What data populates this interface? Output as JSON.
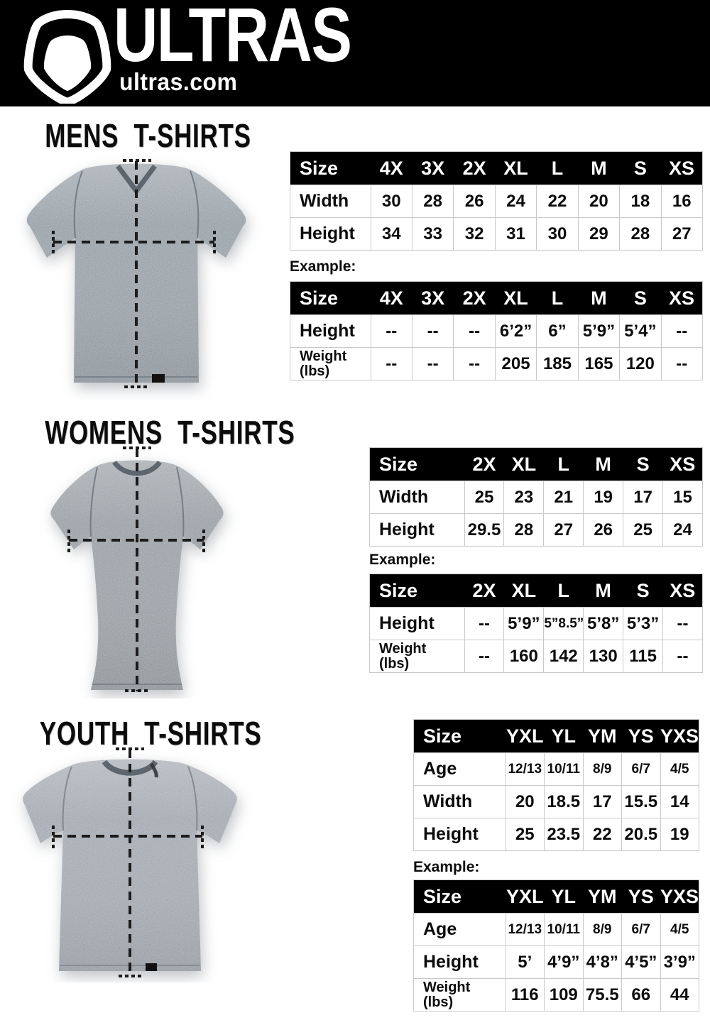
{
  "header": {
    "brand": "ULTRAS",
    "domain": "ultras.com",
    "logo_icon": "ultras-crest-icon",
    "bg_color": "#000000",
    "text_color": "#ffffff"
  },
  "colors": {
    "table_header_bg": "#000000",
    "table_border": "#c9c9c9",
    "dash_line": "#1c1c1c",
    "shirt_gray_mens": "#7b8790",
    "shirt_gray_womens": "#7d858c",
    "shirt_gray_youth": "#8a929c"
  },
  "sections": [
    {
      "title": "MENS T-SHIRTS",
      "shirt_image": "mens-gray-vneck-tshirt-photo",
      "example_label": "Example:",
      "size_table": {
        "header": [
          "Size",
          "4X",
          "3X",
          "2X",
          "XL",
          "L",
          "M",
          "S",
          "XS"
        ],
        "rows": [
          {
            "label": "Width",
            "values": [
              "30",
              "28",
              "26",
              "24",
              "22",
              "20",
              "18",
              "16"
            ]
          },
          {
            "label": "Height",
            "values": [
              "34",
              "33",
              "32",
              "31",
              "30",
              "29",
              "28",
              "27"
            ]
          }
        ]
      },
      "example_table": {
        "header": [
          "Size",
          "4X",
          "3X",
          "2X",
          "XL",
          "L",
          "M",
          "S",
          "XS"
        ],
        "rows": [
          {
            "label": "Height",
            "values": [
              "--",
              "--",
              "--",
              "6’2”",
              "6”",
              "5’9”",
              "5’4”",
              "--"
            ]
          },
          {
            "label": "Weight\n(lbs)",
            "values": [
              "--",
              "--",
              "--",
              "205",
              "185",
              "165",
              "120",
              "--"
            ]
          }
        ]
      }
    },
    {
      "title": "WOMENS T-SHIRTS",
      "shirt_image": "womens-gray-fitted-tshirt-photo",
      "example_label": "Example:",
      "size_table": {
        "header": [
          "Size",
          "2X",
          "XL",
          "L",
          "M",
          "S",
          "XS"
        ],
        "rows": [
          {
            "label": "Width",
            "values": [
              "25",
              "23",
              "21",
              "19",
              "17",
              "15"
            ]
          },
          {
            "label": "Height",
            "values": [
              "29.5",
              "28",
              "27",
              "26",
              "25",
              "24"
            ]
          }
        ]
      },
      "example_table": {
        "header": [
          "Size",
          "2X",
          "XL",
          "L",
          "M",
          "S",
          "XS"
        ],
        "rows": [
          {
            "label": "Height",
            "values": [
              "--",
              "5’9”",
              "5”8.5”",
              "5’8”",
              "5’3”",
              "--"
            ]
          },
          {
            "label": "Weight\n(lbs)",
            "values": [
              "--",
              "160",
              "142",
              "130",
              "115",
              "--"
            ]
          }
        ]
      }
    },
    {
      "title": "YOUTH T-SHIRTS",
      "shirt_image": "youth-gray-tshirt-photo",
      "example_label": "Example:",
      "size_table": {
        "header": [
          "Size",
          "YXL",
          "YL",
          "YM",
          "YS",
          "YXS"
        ],
        "rows": [
          {
            "label": "Age",
            "values": [
              "12/13",
              "10/11",
              "8/9",
              "6/7",
              "4/5"
            ]
          },
          {
            "label": "Width",
            "values": [
              "20",
              "18.5",
              "17",
              "15.5",
              "14"
            ]
          },
          {
            "label": "Height",
            "values": [
              "25",
              "23.5",
              "22",
              "20.5",
              "19"
            ]
          }
        ]
      },
      "example_table": {
        "header": [
          "Size",
          "YXL",
          "YL",
          "YM",
          "YS",
          "YXS"
        ],
        "rows": [
          {
            "label": "Age",
            "values": [
              "12/13",
              "10/11",
              "8/9",
              "6/7",
              "4/5"
            ]
          },
          {
            "label": "Height",
            "values": [
              "5’",
              "4’9”",
              "4’8”",
              "4’5”",
              "3’9”"
            ]
          },
          {
            "label": "Weight\n(lbs)",
            "values": [
              "116",
              "109",
              "75.5",
              "66",
              "44"
            ]
          }
        ]
      }
    }
  ]
}
